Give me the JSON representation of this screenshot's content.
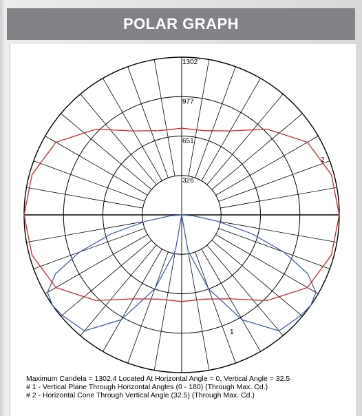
{
  "header": {
    "title": "POLAR GRAPH"
  },
  "chart_data": {
    "type": "polar",
    "radial_ticks": [
      "326",
      "651",
      "977",
      "1302"
    ],
    "rmax": 1302,
    "series": [
      {
        "label": "1",
        "color": "#3f5fa8",
        "angles": [
          0,
          10,
          20,
          30,
          40,
          50,
          55,
          60,
          65,
          70,
          75,
          80,
          85,
          90
        ],
        "values": [
          0,
          300,
          650,
          1000,
          1250,
          1290,
          1302,
          1280,
          1150,
          900,
          600,
          300,
          100,
          0
        ]
      },
      {
        "label": "2",
        "color": "#d4262c",
        "angles": [
          0,
          15,
          30,
          45,
          60,
          75,
          90,
          105,
          120,
          135,
          150,
          165,
          180,
          195,
          210,
          225,
          240,
          255,
          270,
          285,
          300,
          315,
          330,
          345
        ],
        "values": [
          715,
          720,
          800,
          1000,
          1200,
          1280,
          1302,
          1280,
          1200,
          1000,
          800,
          720,
          715,
          720,
          800,
          1000,
          1200,
          1280,
          1302,
          1280,
          1200,
          1000,
          800,
          720
        ]
      }
    ]
  },
  "caption": {
    "line1": "Maximum Candela = 1302.4   Located At Horizontal Angle = 0, Vertical Angle = 32.5",
    "line2": "# 1 - Vertical Plane Through Horizontal Angles (0 - 180) (Through Max. Cd.)",
    "line3": "# 2 - Horizontal Cone Through Vertical Angle (32.5) (Through Max. Cd.)"
  }
}
